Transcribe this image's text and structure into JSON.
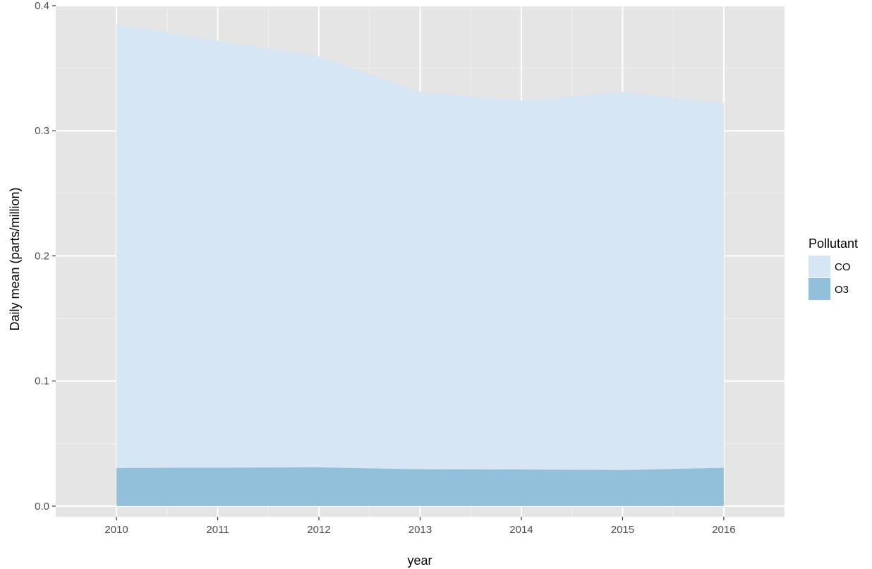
{
  "chart_data": {
    "type": "area",
    "stacked": true,
    "xlabel": "year",
    "ylabel": "Daily mean (parts/million)",
    "x": [
      2010,
      2011,
      2012,
      2013,
      2014,
      2015,
      2016
    ],
    "x_tick_labels": [
      "2010",
      "2011",
      "2012",
      "2013",
      "2014",
      "2015",
      "2016"
    ],
    "xlim": [
      2009.4,
      2016.6
    ],
    "ylim": [
      -0.0085,
      0.4
    ],
    "y_ticks": [
      0.0,
      0.1,
      0.2,
      0.3,
      0.4
    ],
    "y_tick_labels": [
      "0.0",
      "0.1",
      "0.2",
      "0.3",
      "0.4"
    ],
    "y_minor_ticks": [
      0.05,
      0.15,
      0.25,
      0.35
    ],
    "grid": true,
    "legend": {
      "title": "Pollutant",
      "position": "right"
    },
    "series": [
      {
        "name": "O3",
        "color": "#92bfd9",
        "values": [
          0.0305,
          0.0308,
          0.031,
          0.0295,
          0.0293,
          0.0289,
          0.0307
        ]
      },
      {
        "name": "CO",
        "color": "#d6e6f4",
        "values": [
          0.3545,
          0.3412,
          0.3285,
          0.3015,
          0.2947,
          0.3021,
          0.2913
        ]
      }
    ],
    "legend_order": [
      "CO",
      "O3"
    ],
    "colors": {
      "panel_background": "#e5e5e5",
      "grid_major": "#ffffff",
      "grid_minor": "#f2f2f2"
    }
  }
}
